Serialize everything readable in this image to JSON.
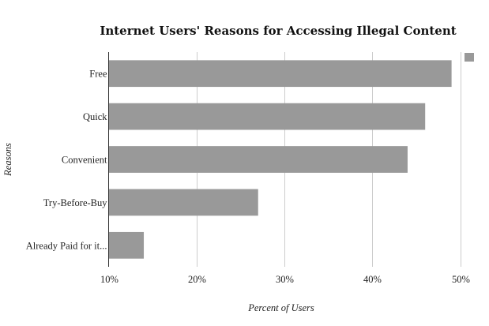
{
  "chart_data": {
    "type": "bar",
    "orientation": "horizontal",
    "title": "Internet Users' Reasons for Accessing Illegal Content",
    "xlabel": "Percent of Users",
    "ylabel": "Reasons",
    "categories": [
      "Free",
      "Quick",
      "Convenient",
      "Try-Before-Buy",
      "Already Paid for it..."
    ],
    "series": [
      {
        "values": [
          49,
          46,
          44,
          27,
          14
        ]
      }
    ],
    "xlim": [
      10,
      52
    ],
    "xticks": [
      10,
      20,
      30,
      40,
      50
    ],
    "xtick_labels": [
      "10%",
      "20%",
      "30%",
      "40%",
      "50%"
    ],
    "grid": true,
    "legend": "top-right",
    "bar_color": "#999999"
  }
}
